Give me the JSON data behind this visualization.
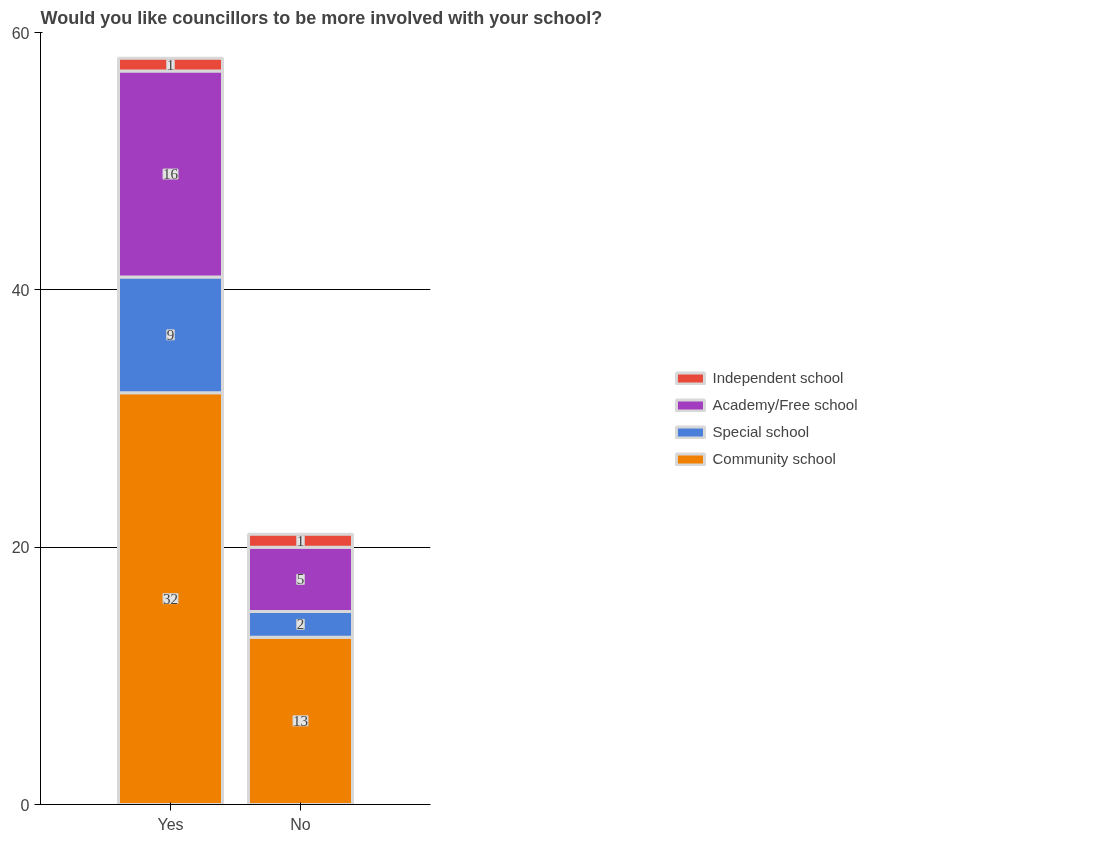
{
  "chart_data": {
    "type": "bar",
    "title": "Would you like councillors to be more involved with your school?",
    "categories": [
      "Yes",
      "No"
    ],
    "stacked": true,
    "data_labels": true,
    "grid": "y",
    "legend": "right",
    "ylim": [
      0,
      60
    ],
    "yticks": [
      0,
      20,
      40,
      60
    ],
    "series": [
      {
        "name": "Community school",
        "color": "#f08000",
        "values": [
          32,
          13
        ]
      },
      {
        "name": "Special school",
        "color": "#4a7fd9",
        "values": [
          9,
          2
        ]
      },
      {
        "name": "Academy/Free school",
        "color": "#a33dbf",
        "values": [
          16,
          5
        ]
      },
      {
        "name": "Independent school",
        "color": "#e8493a",
        "values": [
          1,
          1
        ]
      }
    ]
  }
}
